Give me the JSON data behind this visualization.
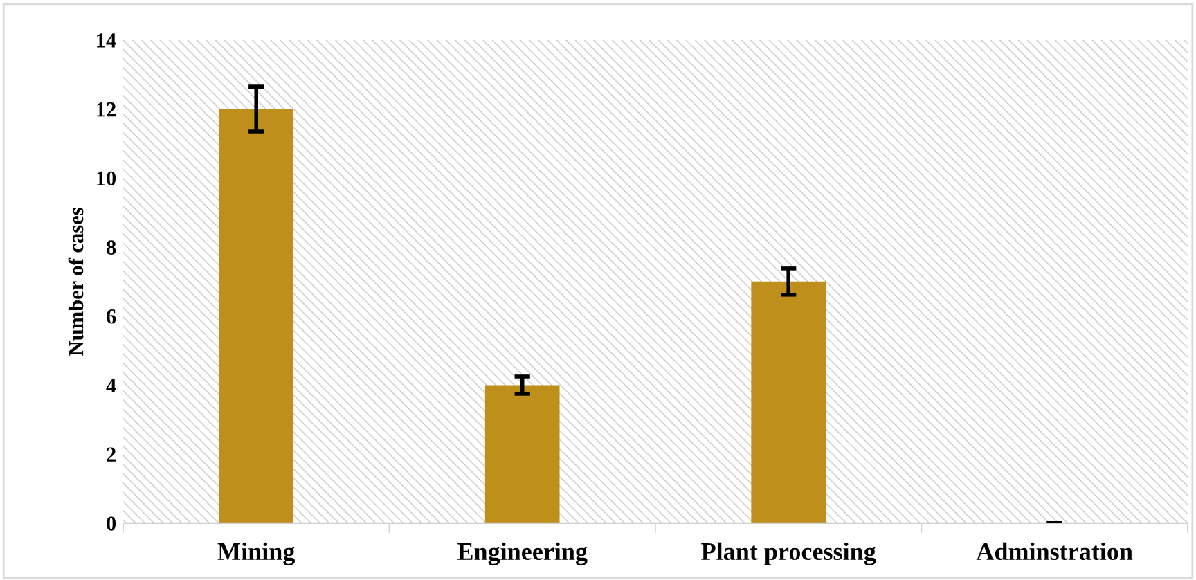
{
  "chart_data": {
    "type": "bar",
    "ylabel": "Number of cases",
    "categories": [
      "Mining",
      "Engineering",
      "Plant processing",
      "Adminstration"
    ],
    "values": [
      12,
      4,
      7,
      0
    ],
    "errors": [
      0.65,
      0.25,
      0.38,
      0
    ],
    "color": "#bf8f1b",
    "ylim": [
      0,
      14
    ],
    "yticks": [
      0,
      2,
      4,
      6,
      8,
      10,
      12,
      14
    ],
    "grid": false
  }
}
